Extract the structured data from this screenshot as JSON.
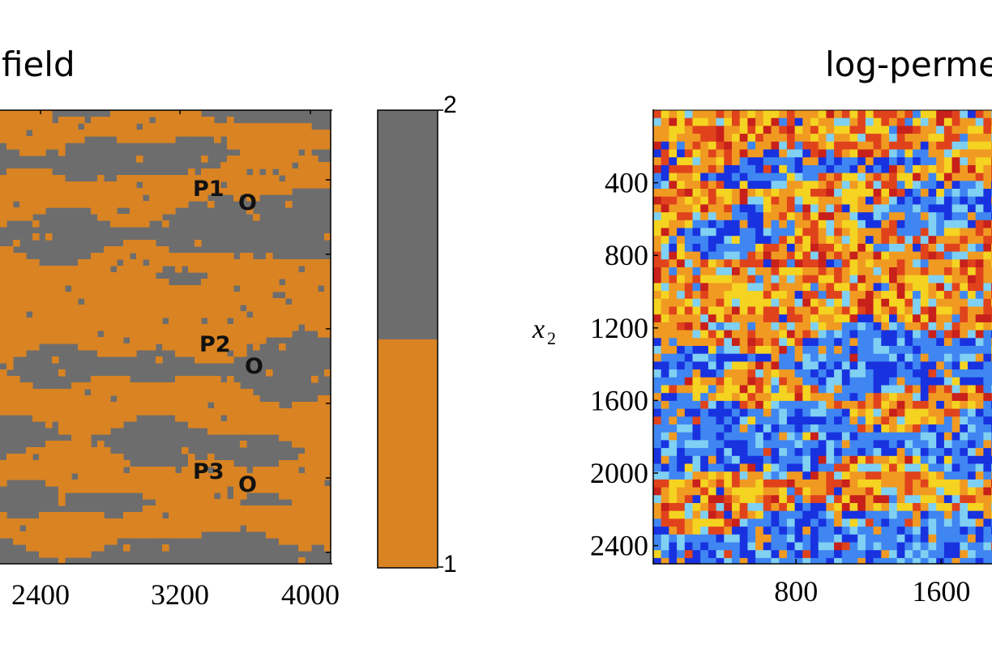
{
  "chart_data": [
    {
      "type": "heatmap",
      "title": "field",
      "x_tick_labels": [
        "2400",
        "3200",
        "4000"
      ],
      "x_ticks": [
        2400,
        3200,
        4000
      ],
      "categories": [
        "1",
        "2"
      ],
      "colors": {
        "1": "#d98322",
        "2": "#6d6d6d"
      },
      "wells": [
        {
          "name": "P1",
          "marker": "O"
        },
        {
          "name": "P2",
          "marker": "O"
        },
        {
          "name": "P3",
          "marker": "O"
        }
      ],
      "colorbar": {
        "min": "1",
        "max": "2"
      }
    },
    {
      "type": "heatmap",
      "title": "log-perme",
      "ylabel": "x",
      "ylabel_sub": "2",
      "y_tick_labels": [
        "400",
        "800",
        "1200",
        "1600",
        "2000",
        "2400"
      ],
      "y_ticks": [
        400,
        800,
        1200,
        1600,
        2000,
        2400
      ],
      "x_tick_labels": [
        "800",
        "1600"
      ],
      "x_ticks": [
        800,
        1600
      ],
      "colormap": [
        "#1832e0",
        "#3f86f2",
        "#7fd0f2",
        "#f5d321",
        "#f09a22",
        "#e0431c",
        "#c8201a"
      ]
    }
  ]
}
